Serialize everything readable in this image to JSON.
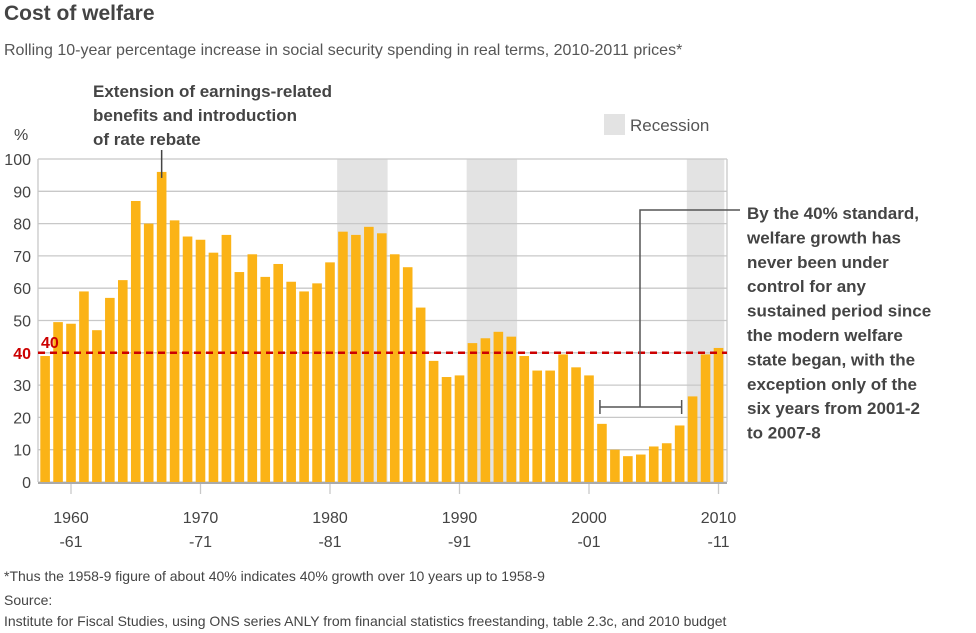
{
  "title": "Cost of welfare",
  "subtitle": "Rolling 10-year percentage increase in social security spending in real terms, 2010-2011 prices*",
  "footnote": "*Thus the 1958-9 figure of about 40% indicates 40% growth over 10 years up to 1958-9",
  "source_label": "Source:",
  "source": "Institute for Fiscal Studies, using ONS series ANLY from financial statistics freestanding, table 2.3c, and 2010 budget",
  "colors": {
    "bar": "#fbb316",
    "recession": "#e3e3e3",
    "threshold": "#cc0000",
    "grid": "#c8c8c8"
  },
  "chart_data": {
    "type": "bar",
    "ylabel": "%",
    "ylim": [
      0,
      100
    ],
    "yticks": [
      0,
      10,
      20,
      30,
      40,
      50,
      60,
      70,
      80,
      90,
      100
    ],
    "grid": true,
    "x_start_years": [
      1958,
      1959,
      1960,
      1961,
      1962,
      1963,
      1964,
      1965,
      1966,
      1967,
      1968,
      1969,
      1970,
      1971,
      1972,
      1973,
      1974,
      1975,
      1976,
      1977,
      1978,
      1979,
      1980,
      1981,
      1982,
      1983,
      1984,
      1985,
      1986,
      1987,
      1988,
      1989,
      1990,
      1991,
      1992,
      1993,
      1994,
      1995,
      1996,
      1997,
      1998,
      1999,
      2000,
      2001,
      2002,
      2003,
      2004,
      2005,
      2006,
      2007,
      2008,
      2009,
      2010
    ],
    "values": [
      39,
      49.5,
      49,
      59,
      47,
      57,
      62.5,
      87,
      80,
      96,
      81,
      76,
      75,
      71,
      76.5,
      65,
      70.5,
      63.5,
      67.5,
      62,
      59,
      61.5,
      68,
      77.5,
      76.5,
      79,
      77,
      70.5,
      66.5,
      54,
      37.5,
      32.5,
      33,
      43,
      44.5,
      46.5,
      45,
      39,
      34.5,
      34.5,
      39.5,
      35.5,
      33,
      18,
      10,
      8,
      8.5,
      11,
      12,
      17.5,
      26.5,
      39.5,
      41.5
    ],
    "xticks": [
      {
        "year": 1960,
        "line1": "1960",
        "line2": "-61"
      },
      {
        "year": 1970,
        "line1": "1970",
        "line2": "-71"
      },
      {
        "year": 1980,
        "line1": "1980",
        "line2": "-81"
      },
      {
        "year": 1990,
        "line1": "1990",
        "line2": "-91"
      },
      {
        "year": 2000,
        "line1": "2000",
        "line2": "-01"
      },
      {
        "year": 2010,
        "line1": "2010",
        "line2": "-11"
      }
    ],
    "recessions": [
      [
        1981,
        1984
      ],
      [
        1991,
        1994
      ],
      [
        2008,
        2010
      ]
    ],
    "legend": {
      "label": "Recession",
      "placement": "top-right"
    },
    "threshold": {
      "value": 40,
      "label": "40"
    },
    "annotations": [
      {
        "text": [
          "Extension of earnings-related",
          "benefits and introduction",
          "of rate rebate"
        ],
        "year": 1967
      },
      {
        "text": [
          "By the 40% standard,",
          "welfare growth has",
          "never been under",
          "control for any",
          "sustained period since",
          "the modern welfare",
          "state began, with the",
          "exception only of the",
          "six years from 2001-2",
          "to 2007-8"
        ],
        "range": [
          2001,
          2007
        ],
        "level": 20
      }
    ]
  }
}
